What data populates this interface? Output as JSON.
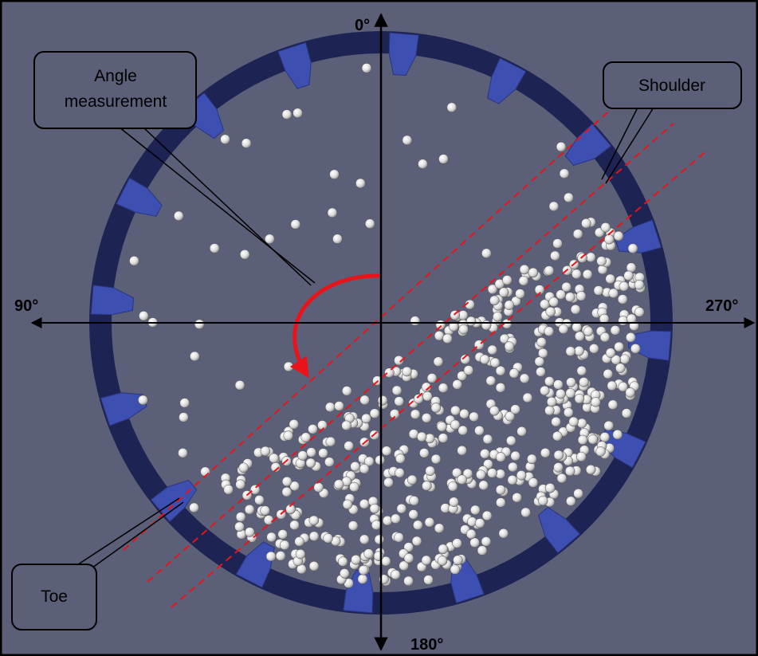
{
  "axes": {
    "top": "0°",
    "left": "90°",
    "right": "270°",
    "bottom": "180°"
  },
  "callouts": {
    "angle": [
      "Angle",
      "measurement"
    ],
    "shoulder": "Shoulder",
    "toe": "Toe"
  }
}
